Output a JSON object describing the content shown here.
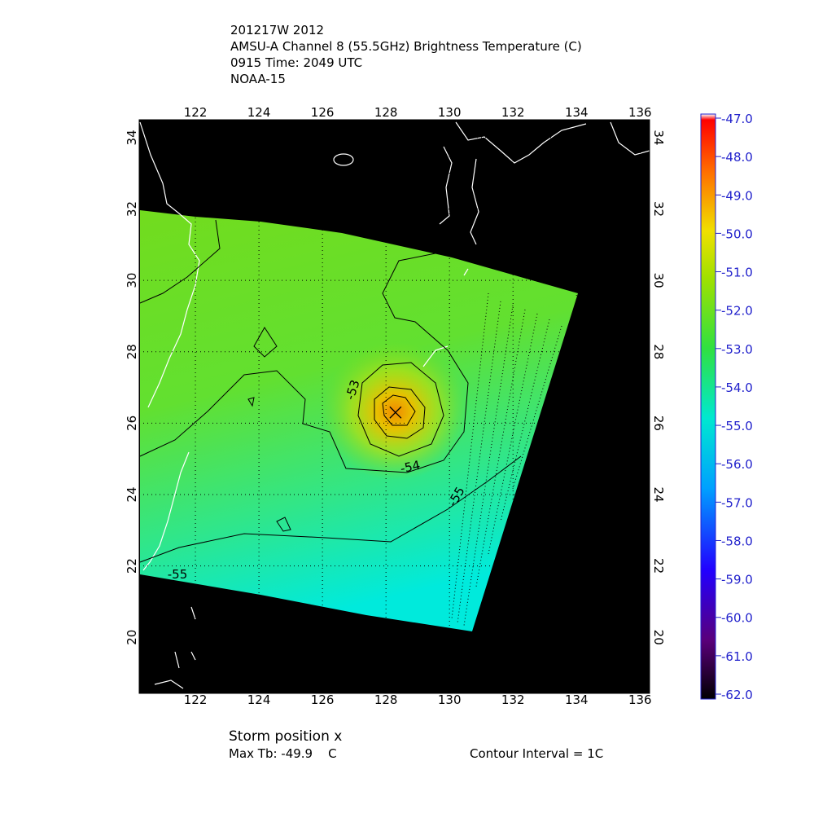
{
  "chart_data": {
    "type": "map",
    "title_lines": [
      "201217W 2012",
      "AMSU-A Channel 8 (55.5GHz) Brightness Temperature (C)",
      "0915 Time: 2049 UTC",
      "NOAA-15"
    ],
    "xlim": [
      120.23,
      136.3
    ],
    "ylim": [
      18.43,
      34.5
    ],
    "xticks": [
      122,
      124,
      126,
      128,
      130,
      132,
      134,
      136
    ],
    "yticks": [
      20,
      22,
      24,
      26,
      28,
      30,
      32,
      34
    ],
    "grid": true,
    "storm_position": {
      "lon": 128.3,
      "lat": 26.3
    },
    "contour_labels": [
      -53,
      -54,
      -55,
      -55
    ],
    "colorbar": {
      "range": [
        -62,
        -47
      ],
      "ticks": [
        {
          "value": -47,
          "label": "-47.0"
        },
        {
          "value": -48,
          "label": "-48.0"
        },
        {
          "value": -49,
          "label": "-49.0"
        },
        {
          "value": -50,
          "label": "-50.0"
        },
        {
          "value": -51,
          "label": "-51.0"
        },
        {
          "value": -52,
          "label": "-52.0"
        },
        {
          "value": -53,
          "label": "-53.0"
        },
        {
          "value": -54,
          "label": "-54.0"
        },
        {
          "value": -55,
          "label": "-55.0"
        },
        {
          "value": -56,
          "label": "-56.0"
        },
        {
          "value": -57,
          "label": "-57.0"
        },
        {
          "value": -58,
          "label": "-58.0"
        },
        {
          "value": -59,
          "label": "-59.0"
        },
        {
          "value": -60,
          "label": "-60.0"
        },
        {
          "value": -61,
          "label": "-61.0"
        },
        {
          "value": -62,
          "label": "-62.0"
        }
      ]
    },
    "footer": {
      "storm_label": "Storm position x",
      "max_tb": "Max Tb: -49.9    C",
      "contour_interval": "Contour Interval = 1C"
    }
  }
}
